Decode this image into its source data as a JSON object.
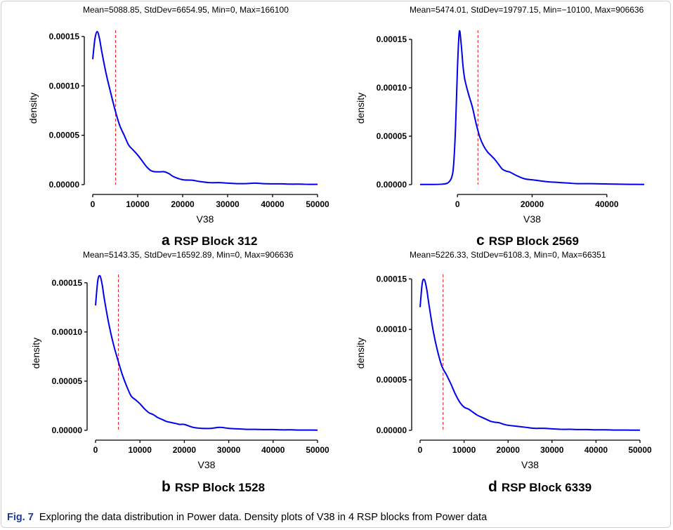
{
  "figure": {
    "label": "Fig. 7",
    "caption": "Exploring the data distribution in Power data. Density plots of V38 in 4 RSP blocks from Power data"
  },
  "colors": {
    "curve": "#0000ee",
    "mean_line": "#e8212b",
    "axis": "#000000"
  },
  "chart_data": [
    {
      "type": "line",
      "panel_letter": "a",
      "panel_title": "RSP Block 312",
      "stats": "Mean=5088.85, StdDev=6654.95, Min=0, Max=166100",
      "xlabel": "V38",
      "ylabel": "density",
      "xlim": [
        0,
        50000
      ],
      "ylim": [
        0,
        0.000155
      ],
      "x_ticks": [
        0,
        10000,
        20000,
        30000,
        40000,
        50000
      ],
      "x_tick_labels": [
        "0",
        "10000",
        "20000",
        "30000",
        "40000",
        "50000"
      ],
      "y_ticks": [
        0,
        5e-05,
        0.0001,
        0.00015
      ],
      "y_tick_labels": [
        "0.00000",
        "0.00005",
        "0.00010",
        "0.00015"
      ],
      "mean_line": 5088.85,
      "series": [
        {
          "x": [
            0,
            500,
            1000,
            1500,
            2000,
            3000,
            4000,
            5000,
            6000,
            7000,
            8000,
            9000,
            10000,
            11000,
            12000,
            13000,
            14000,
            15000,
            16000,
            17000,
            18000,
            20000,
            22000,
            24000,
            26000,
            28000,
            30000,
            32000,
            34000,
            36000,
            38000,
            40000,
            42000,
            44000,
            46000,
            48000,
            50000
          ],
          "y": [
            0.000127,
            0.000148,
            0.000155,
            0.000148,
            0.000135,
            0.000112,
            9.3e-05,
            7.5e-05,
            6e-05,
            5e-05,
            4e-05,
            3.5e-05,
            3e-05,
            2.4e-05,
            1.8e-05,
            1.4e-05,
            1.3e-05,
            1.3e-05,
            1.3e-05,
            1.1e-05,
            8e-06,
            5e-06,
            4.5e-06,
            3e-06,
            2e-06,
            2e-06,
            1.5e-06,
            1e-06,
            1e-06,
            1.5e-06,
            1e-06,
            8e-07,
            8e-07,
            5e-07,
            5e-07,
            3e-07,
            3e-07
          ]
        }
      ]
    },
    {
      "type": "line",
      "panel_letter": "c",
      "panel_title": "RSP Block 2569",
      "stats": "Mean=5474.01, StdDev=19797.15, Min=−10100, Max=906636",
      "xlabel": "V38",
      "ylabel": "density",
      "xlim": [
        -10000,
        50000
      ],
      "ylim": [
        0,
        0.000158
      ],
      "x_ticks": [
        0,
        20000,
        40000
      ],
      "x_tick_labels": [
        "0",
        "20000",
        "40000"
      ],
      "y_ticks": [
        0,
        5e-05,
        0.0001,
        0.00015
      ],
      "y_tick_labels": [
        "0.00000",
        "0.00005",
        "0.00010",
        "0.00015"
      ],
      "mean_line": 5474.01,
      "series": [
        {
          "x": [
            -10000,
            -7000,
            -4000,
            -2500,
            -1500,
            -1000,
            -500,
            0,
            500,
            1000,
            1500,
            2000,
            3000,
            4000,
            5000,
            6000,
            7000,
            8000,
            9000,
            10000,
            11000,
            12000,
            13000,
            14000,
            15000,
            16000,
            18000,
            20000,
            22000,
            24000,
            26000,
            28000,
            30000,
            32000,
            35000,
            38000,
            42000,
            46000,
            50000
          ],
          "y": [
            2e-07,
            2e-07,
            5e-07,
            2e-06,
            8e-06,
            2.2e-05,
            6e-05,
            0.00012,
            0.000158,
            0.000145,
            0.000122,
            0.000108,
            9.3e-05,
            8e-05,
            6.3e-05,
            4.9e-05,
            4e-05,
            3.4e-05,
            3e-05,
            2.6e-05,
            2.1e-05,
            1.6e-05,
            1.4e-05,
            1.3e-05,
            1.1e-05,
            9e-06,
            6e-06,
            5e-06,
            4e-06,
            3e-06,
            2.5e-06,
            2e-06,
            1.5e-06,
            1e-06,
            1e-06,
            8e-07,
            5e-07,
            3e-07,
            2e-07
          ]
        }
      ]
    },
    {
      "type": "line",
      "panel_letter": "b",
      "panel_title": "RSP Block 1528",
      "stats": "Mean=5143.35, StdDev=16592.89, Min=0, Max=906636",
      "xlabel": "V38",
      "ylabel": "density",
      "xlim": [
        0,
        50000
      ],
      "ylim": [
        0,
        0.000157
      ],
      "x_ticks": [
        0,
        10000,
        20000,
        30000,
        40000,
        50000
      ],
      "x_tick_labels": [
        "0",
        "10000",
        "20000",
        "30000",
        "40000",
        "50000"
      ],
      "y_ticks": [
        0,
        5e-05,
        0.0001,
        0.00015
      ],
      "y_tick_labels": [
        "0.00000",
        "0.00005",
        "0.00010",
        "0.00015"
      ],
      "mean_line": 5143.35,
      "series": [
        {
          "x": [
            0,
            500,
            1000,
            1500,
            2000,
            3000,
            4000,
            5000,
            6000,
            7000,
            8000,
            9000,
            10000,
            11000,
            12000,
            13000,
            14000,
            15000,
            16000,
            17000,
            18000,
            19000,
            20000,
            22000,
            24000,
            26000,
            28000,
            30000,
            32000,
            34000,
            36000,
            38000,
            40000,
            42000,
            44000,
            46000,
            48000,
            50000
          ],
          "y": [
            0.000127,
            0.000152,
            0.000157,
            0.000148,
            0.000133,
            0.000108,
            8.8e-05,
            7.2e-05,
            5.7e-05,
            4.5e-05,
            3.5e-05,
            3.1e-05,
            2.7e-05,
            2.2e-05,
            1.8e-05,
            1.6e-05,
            1.3e-05,
            1.1e-05,
            9e-06,
            8e-06,
            7e-06,
            6e-06,
            6e-06,
            3e-06,
            2e-06,
            2e-06,
            3e-06,
            2e-06,
            1.5e-06,
            1e-06,
            1e-06,
            8e-07,
            8e-07,
            5e-07,
            5e-07,
            3e-07,
            3e-07,
            2e-07
          ]
        }
      ]
    },
    {
      "type": "line",
      "panel_letter": "d",
      "panel_title": "RSP Block 6339",
      "stats": "Mean=5226.33, StdDev=6108.3, Min=0, Max=66351",
      "xlabel": "V38",
      "ylabel": "density",
      "xlim": [
        0,
        50000
      ],
      "ylim": [
        0,
        0.000153
      ],
      "x_ticks": [
        0,
        10000,
        20000,
        30000,
        40000,
        50000
      ],
      "x_tick_labels": [
        "0",
        "10000",
        "20000",
        "30000",
        "40000",
        "50000"
      ],
      "y_ticks": [
        0,
        5e-05,
        0.0001,
        0.00015
      ],
      "y_tick_labels": [
        "0.00000",
        "0.00005",
        "0.00010",
        "0.00015"
      ],
      "mean_line": 5226.33,
      "series": [
        {
          "x": [
            0,
            500,
            1000,
            1500,
            2000,
            3000,
            4000,
            5000,
            6000,
            7000,
            8000,
            9000,
            10000,
            11000,
            12000,
            13000,
            14000,
            15000,
            16000,
            17000,
            18000,
            19000,
            20000,
            22000,
            24000,
            26000,
            28000,
            30000,
            32000,
            34000,
            36000,
            38000,
            40000,
            42000,
            44000,
            46000,
            48000,
            50000
          ],
          "y": [
            0.000122,
            0.000146,
            0.000149,
            0.00014,
            0.000125,
            9.8e-05,
            7.8e-05,
            6.3e-05,
            5.5e-05,
            4.6e-05,
            3.6e-05,
            2.8e-05,
            2.3e-05,
            2.1e-05,
            1.8e-05,
            1.5e-05,
            1.3e-05,
            1.1e-05,
            9e-06,
            8e-06,
            7.5e-06,
            6e-06,
            5e-06,
            4e-06,
            3e-06,
            2e-06,
            2e-06,
            1.5e-06,
            1e-06,
            1e-06,
            8e-07,
            8e-07,
            5e-07,
            5e-07,
            3e-07,
            3e-07,
            2e-07,
            2e-07
          ]
        }
      ]
    }
  ]
}
